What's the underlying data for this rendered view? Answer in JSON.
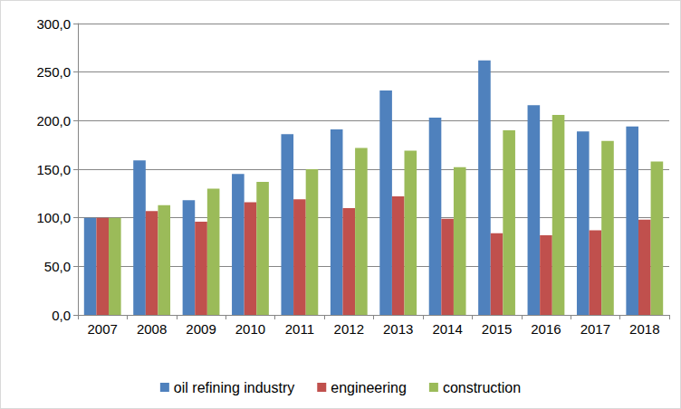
{
  "chart_data": {
    "type": "bar",
    "categories": [
      "2007",
      "2008",
      "2009",
      "2010",
      "2011",
      "2012",
      "2013",
      "2014",
      "2015",
      "2016",
      "2017",
      "2018"
    ],
    "series": [
      {
        "name": "oil refining industry",
        "color": "#4f81bd",
        "values": [
          100,
          159,
          118,
          145,
          186,
          191,
          231,
          203,
          262,
          216,
          189,
          194
        ]
      },
      {
        "name": "engineering",
        "color": "#c0504d",
        "values": [
          100,
          107,
          96,
          116,
          119,
          110,
          122,
          99,
          84,
          82,
          87,
          98
        ]
      },
      {
        "name": "construction",
        "color": "#9bbb59",
        "values": [
          100,
          113,
          130,
          137,
          150,
          172,
          169,
          152,
          190,
          206,
          179,
          158
        ]
      }
    ],
    "ylim": [
      0,
      300
    ],
    "yticks": [
      {
        "value": 0,
        "label": "0,0"
      },
      {
        "value": 50,
        "label": "50,0"
      },
      {
        "value": 100,
        "label": "100,0"
      },
      {
        "value": 150,
        "label": "150,0"
      },
      {
        "value": 200,
        "label": "200,0"
      },
      {
        "value": 250,
        "label": "250,0"
      },
      {
        "value": 300,
        "label": "300,0"
      }
    ],
    "grid": true,
    "legend": "bottom"
  }
}
